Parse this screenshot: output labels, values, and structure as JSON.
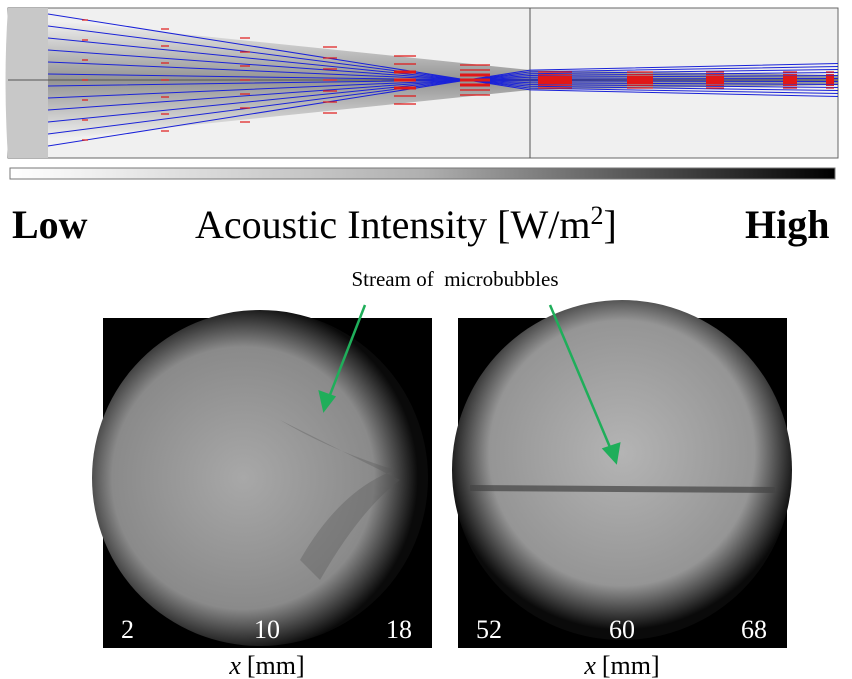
{
  "colorbar": {
    "low": "Low",
    "label": "Acoustic Intensity [W/m",
    "label_sup": "2",
    "label_end": "]",
    "high": "High"
  },
  "annotation": "Stream of  microbubbles",
  "panels": [
    {
      "ticks": [
        2,
        10,
        18
      ],
      "axis_var": "x",
      "axis_unit": "[mm]"
    },
    {
      "ticks": [
        52,
        60,
        68
      ],
      "axis_var": "x",
      "axis_unit": "[mm]"
    }
  ]
}
